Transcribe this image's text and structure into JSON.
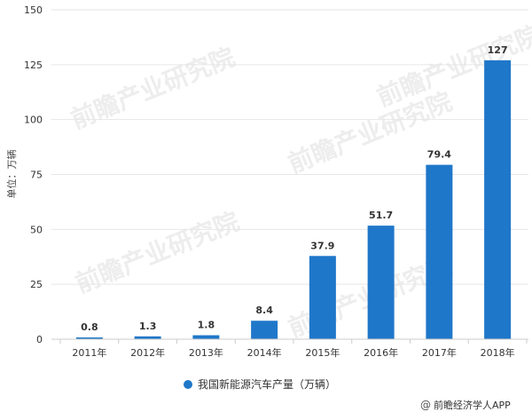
{
  "chart_data": {
    "type": "bar",
    "categories": [
      "2011年",
      "2012年",
      "2013年",
      "2014年",
      "2015年",
      "2016年",
      "2017年",
      "2018年"
    ],
    "series": [
      {
        "name": "我国新能源汽车产量（万辆）",
        "values": [
          0.8,
          1.3,
          1.8,
          8.4,
          37.9,
          51.7,
          79.4,
          127
        ],
        "data_labels": [
          "0.8",
          "1.3",
          "1.8",
          "8.4",
          "37.9",
          "51.7",
          "79.4",
          "127"
        ],
        "color": "#1f77c9"
      }
    ],
    "ylabel": "单位：万辆",
    "ylim": [
      0,
      150
    ],
    "yticks": [
      "0",
      "25",
      "50",
      "75",
      "100",
      "125",
      "150"
    ],
    "ytick_values": [
      0,
      25,
      50,
      75,
      100,
      125,
      150
    ],
    "grid": true,
    "legend_position": "bottom"
  },
  "watermark": {
    "text": "前瞻产业研究院",
    "color": "#e0e0e0"
  },
  "credit": {
    "text": "前瞻经济学人APP",
    "icon": "at-sign-icon"
  },
  "colors": {
    "bar": "#1f77c9",
    "grid": "#e6e6e6",
    "axis": "#cccccc"
  }
}
